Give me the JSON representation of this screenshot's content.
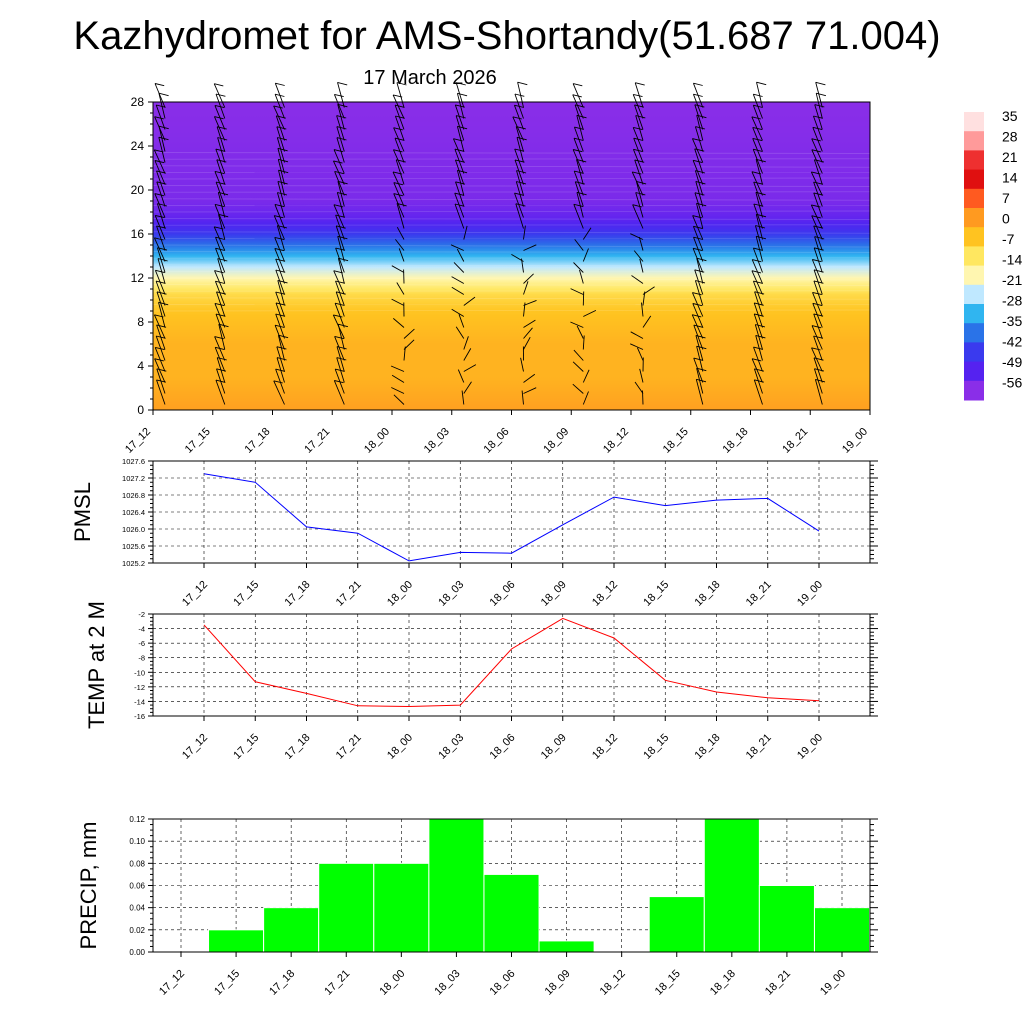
{
  "title": "Kazhydromet for AMS-Shortandy(51.687 71.004)",
  "subtitle": "17 March 2026",
  "colors": {
    "pmsl_line": "#0000ff",
    "temp_line": "#ff0000",
    "precip_bar": "#00ff00",
    "precip_bar_edge": "#ffffff"
  },
  "chart_data": [
    {
      "type": "heatmap",
      "name": "temperature-profile",
      "xlabel": "",
      "ylabel": "",
      "x": [
        "17_12",
        "17_15",
        "17_18",
        "17_21",
        "18_00",
        "18_03",
        "18_06",
        "18_09",
        "18_12",
        "18_15",
        "18_18",
        "18_21",
        "19_00"
      ],
      "yticks": [
        0,
        4,
        8,
        12,
        16,
        20,
        24,
        28
      ],
      "ylim": [
        0,
        28
      ],
      "profile": [
        {
          "y": 0,
          "value": 0
        },
        {
          "y": 3,
          "value": -3
        },
        {
          "y": 6,
          "value": -3
        },
        {
          "y": 9,
          "value": -6
        },
        {
          "y": 10.5,
          "value": -10
        },
        {
          "y": 11.5,
          "value": -16
        },
        {
          "y": 13,
          "value": -26
        },
        {
          "y": 15,
          "value": -40
        },
        {
          "y": 16.5,
          "value": -50
        },
        {
          "y": 17.5,
          "value": -55
        },
        {
          "y": 19,
          "value": -58
        },
        {
          "y": 28,
          "value": -60
        }
      ],
      "wind_barbs": true,
      "colorbar": {
        "labels": [
          "35",
          "28",
          "21",
          "14",
          "7",
          "0",
          "-7",
          "-14",
          "-21",
          "-28",
          "-35",
          "-42",
          "-49",
          "-56"
        ],
        "colors": [
          "#ffe0e0",
          "#ff9a9a",
          "#ee3030",
          "#e01010",
          "#ff5a20",
          "#ff9a20",
          "#ffc320",
          "#ffe760",
          "#fff6b0",
          "#bfe8ff",
          "#30b5f0",
          "#2a73e8",
          "#3a3aee",
          "#5522f0",
          "#8a2ee8"
        ]
      }
    },
    {
      "type": "line",
      "name": "pmsl",
      "ylabel": "PMSL",
      "categories": [
        "17_12",
        "17_15",
        "17_18",
        "17_21",
        "18_00",
        "18_03",
        "18_06",
        "18_09",
        "18_12",
        "18_15",
        "18_18",
        "18_21",
        "19_00"
      ],
      "values": [
        1027.3,
        1027.1,
        1026.05,
        1025.9,
        1025.25,
        1025.45,
        1025.43,
        1026.1,
        1026.75,
        1026.55,
        1026.68,
        1026.72,
        1025.95
      ],
      "ylim": [
        1025.2,
        1027.6
      ],
      "yticks": [
        "1025.2",
        "1025.6",
        "1026.0",
        "1026.4",
        "1026.8",
        "1027.2",
        "1027.6"
      ],
      "grid": true
    },
    {
      "type": "line",
      "name": "temp",
      "ylabel": "TEMP at 2 M",
      "categories": [
        "17_12",
        "17_15",
        "17_18",
        "17_21",
        "18_00",
        "18_03",
        "18_06",
        "18_09",
        "18_12",
        "18_15",
        "18_18",
        "18_21",
        "19_00"
      ],
      "values": [
        -3.5,
        -11.3,
        -12.9,
        -14.6,
        -14.7,
        -14.5,
        -6.8,
        -2.6,
        -5.3,
        -11.1,
        -12.7,
        -13.5,
        -13.9
      ],
      "ylim": [
        -16,
        -2
      ],
      "yticks": [
        "-16",
        "-14",
        "-12",
        "-10",
        "-8",
        "-6",
        "-4",
        "-2"
      ],
      "grid": true
    },
    {
      "type": "bar",
      "name": "precip",
      "ylabel": "PRECIP, mm",
      "categories": [
        "17_12",
        "17_15",
        "17_18",
        "17_21",
        "18_00",
        "18_03",
        "18_06",
        "18_09",
        "18_12",
        "18_15",
        "18_18",
        "18_21",
        "19_00"
      ],
      "values": [
        0,
        0.02,
        0.04,
        0.08,
        0.08,
        0.12,
        0.07,
        0.01,
        0,
        0.05,
        0.12,
        0.06,
        0.04
      ],
      "ylim": [
        0,
        0.12
      ],
      "yticks": [
        "0.00",
        "0.02",
        "0.04",
        "0.06",
        "0.08",
        "0.10",
        "0.12"
      ],
      "grid": true
    }
  ]
}
